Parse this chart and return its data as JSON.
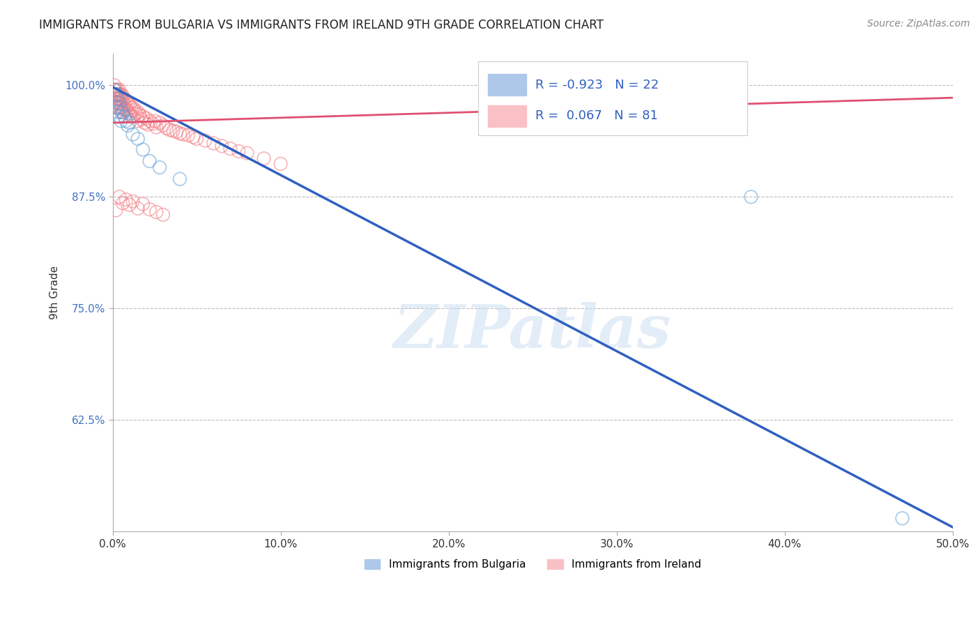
{
  "title": "IMMIGRANTS FROM BULGARIA VS IMMIGRANTS FROM IRELAND 9TH GRADE CORRELATION CHART",
  "source": "Source: ZipAtlas.com",
  "ylabel": "9th Grade",
  "xlim": [
    0.0,
    0.5
  ],
  "ylim": [
    0.5,
    1.035
  ],
  "xticks": [
    0.0,
    0.1,
    0.2,
    0.3,
    0.4,
    0.5
  ],
  "xticklabels": [
    "0.0%",
    "10.0%",
    "20.0%",
    "30.0%",
    "40.0%",
    "50.0%"
  ],
  "yticks": [
    0.625,
    0.75,
    0.875,
    1.0
  ],
  "yticklabels": [
    "62.5%",
    "75.0%",
    "87.5%",
    "100.0%"
  ],
  "grid_color": "#bbbbbb",
  "background_color": "#ffffff",
  "blue_color": "#5b9bd5",
  "pink_color": "#f4777f",
  "blue_R": -0.923,
  "blue_N": 22,
  "pink_R": 0.067,
  "pink_N": 81,
  "blue_label": "Immigrants from Bulgaria",
  "pink_label": "Immigrants from Ireland",
  "watermark": "ZIPatlas",
  "blue_scatter_x": [
    0.001,
    0.002,
    0.002,
    0.003,
    0.003,
    0.004,
    0.004,
    0.005,
    0.005,
    0.006,
    0.007,
    0.008,
    0.009,
    0.01,
    0.012,
    0.015,
    0.018,
    0.022,
    0.028,
    0.04,
    0.38,
    0.47
  ],
  "blue_scatter_y": [
    0.995,
    0.99,
    0.975,
    0.985,
    0.97,
    0.98,
    0.965,
    0.975,
    0.96,
    0.97,
    0.965,
    0.96,
    0.955,
    0.958,
    0.945,
    0.94,
    0.928,
    0.915,
    0.908,
    0.895,
    0.875,
    0.515
  ],
  "pink_scatter_x": [
    0.001,
    0.001,
    0.001,
    0.002,
    0.002,
    0.002,
    0.002,
    0.003,
    0.003,
    0.003,
    0.003,
    0.003,
    0.004,
    0.004,
    0.004,
    0.004,
    0.005,
    0.005,
    0.005,
    0.005,
    0.006,
    0.006,
    0.006,
    0.006,
    0.007,
    0.007,
    0.007,
    0.008,
    0.008,
    0.009,
    0.009,
    0.01,
    0.01,
    0.011,
    0.011,
    0.012,
    0.012,
    0.013,
    0.014,
    0.015,
    0.015,
    0.016,
    0.017,
    0.018,
    0.019,
    0.02,
    0.021,
    0.022,
    0.024,
    0.025,
    0.026,
    0.028,
    0.03,
    0.032,
    0.034,
    0.036,
    0.038,
    0.04,
    0.042,
    0.045,
    0.048,
    0.05,
    0.055,
    0.06,
    0.065,
    0.07,
    0.075,
    0.08,
    0.09,
    0.1,
    0.002,
    0.004,
    0.006,
    0.008,
    0.01,
    0.012,
    0.015,
    0.018,
    0.022,
    0.026,
    0.03
  ],
  "pink_scatter_y": [
    1.0,
    0.995,
    0.99,
    0.995,
    0.99,
    0.985,
    0.98,
    0.995,
    0.99,
    0.985,
    0.98,
    0.975,
    0.995,
    0.99,
    0.985,
    0.975,
    0.99,
    0.985,
    0.98,
    0.97,
    0.988,
    0.982,
    0.976,
    0.97,
    0.985,
    0.978,
    0.972,
    0.982,
    0.973,
    0.98,
    0.971,
    0.978,
    0.968,
    0.975,
    0.965,
    0.975,
    0.965,
    0.972,
    0.968,
    0.97,
    0.96,
    0.967,
    0.962,
    0.965,
    0.958,
    0.963,
    0.956,
    0.96,
    0.957,
    0.96,
    0.953,
    0.958,
    0.955,
    0.952,
    0.95,
    0.949,
    0.948,
    0.946,
    0.945,
    0.944,
    0.942,
    0.94,
    0.938,
    0.935,
    0.932,
    0.929,
    0.926,
    0.924,
    0.918,
    0.912,
    0.86,
    0.875,
    0.868,
    0.872,
    0.866,
    0.87,
    0.862,
    0.867,
    0.861,
    0.858,
    0.855
  ],
  "blue_trend_x0": 0.0,
  "blue_trend_y0": 0.998,
  "blue_trend_x1": 0.5,
  "blue_trend_y1": 0.505,
  "pink_trend_x0": 0.0,
  "pink_trend_y0": 0.958,
  "pink_trend_x1": 0.5,
  "pink_trend_y1": 0.986
}
